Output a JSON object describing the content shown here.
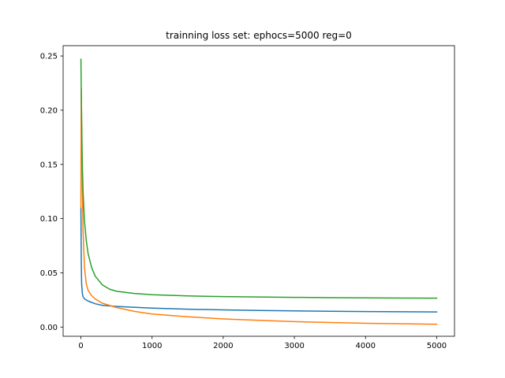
{
  "chart_data": {
    "type": "line",
    "title": "trainning loss set: ephocs=5000 reg=0",
    "xlabel": "",
    "ylabel": "",
    "xlim": [
      -250,
      5250
    ],
    "ylim": [
      -0.0085,
      0.2595
    ],
    "xticks": [
      0,
      1000,
      2000,
      3000,
      4000,
      5000
    ],
    "xtick_labels": [
      "0",
      "1000",
      "2000",
      "3000",
      "4000",
      "5000"
    ],
    "yticks": [
      0.0,
      0.05,
      0.1,
      0.15,
      0.2,
      0.25
    ],
    "ytick_labels": [
      "0.00",
      "0.05",
      "0.10",
      "0.15",
      "0.20",
      "0.25"
    ],
    "grid": false,
    "legend": "none",
    "series": [
      {
        "color": "#1f77b4",
        "x": [
          0,
          5,
          10,
          20,
          30,
          50,
          100,
          200,
          300,
          500,
          1000,
          1500,
          2000,
          2500,
          3000,
          3500,
          4000,
          4500,
          5000
        ],
        "y": [
          0.11,
          0.06,
          0.04,
          0.031,
          0.028,
          0.026,
          0.024,
          0.0215,
          0.02,
          0.019,
          0.0175,
          0.0165,
          0.0158,
          0.0153,
          0.0149,
          0.0146,
          0.0143,
          0.0141,
          0.0139
        ]
      },
      {
        "color": "#ff7f0e",
        "x": [
          0,
          5,
          10,
          20,
          30,
          50,
          75,
          100,
          150,
          200,
          300,
          500,
          750,
          1000,
          1500,
          2000,
          2500,
          3000,
          3500,
          4000,
          4500,
          5000
        ],
        "y": [
          0.11,
          0.22,
          0.19,
          0.13,
          0.09,
          0.055,
          0.04,
          0.034,
          0.029,
          0.026,
          0.022,
          0.018,
          0.0145,
          0.012,
          0.0095,
          0.0075,
          0.0062,
          0.005,
          0.0042,
          0.0035,
          0.003,
          0.0026
        ]
      },
      {
        "color": "#2ca02c",
        "x": [
          0,
          10,
          20,
          30,
          50,
          75,
          100,
          150,
          200,
          300,
          400,
          500,
          750,
          1000,
          1500,
          2000,
          2500,
          3000,
          3500,
          4000,
          4500,
          5000
        ],
        "y": [
          0.247,
          0.19,
          0.15,
          0.125,
          0.098,
          0.08,
          0.068,
          0.055,
          0.047,
          0.039,
          0.035,
          0.033,
          0.031,
          0.0298,
          0.0287,
          0.0281,
          0.0277,
          0.0274,
          0.0271,
          0.0269,
          0.0267,
          0.0266
        ]
      }
    ]
  }
}
